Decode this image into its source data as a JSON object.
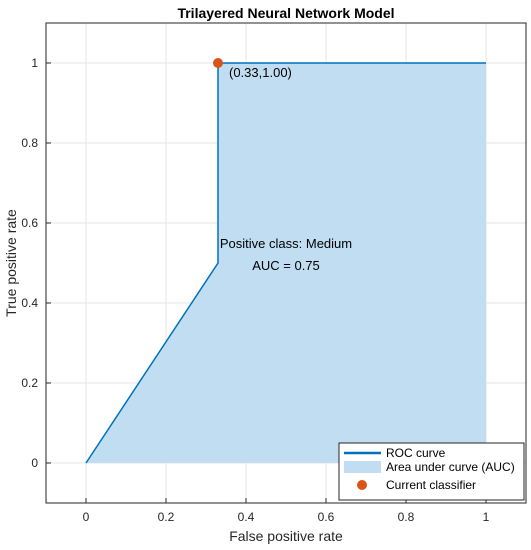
{
  "chart_data": {
    "type": "area",
    "title": "Trilayered Neural Network Model",
    "xlabel": "False positive rate",
    "ylabel": "True positive rate",
    "xlim": [
      -0.1,
      1.1
    ],
    "ylim": [
      -0.1,
      1.1
    ],
    "x_ticks": [
      0,
      0.2,
      0.4,
      0.6,
      0.8,
      1
    ],
    "x_tick_labels": [
      "0",
      "0.2",
      "0.4",
      "0.6",
      "0.8",
      "1"
    ],
    "y_ticks": [
      0,
      0.2,
      0.4,
      0.6,
      0.8,
      1
    ],
    "y_tick_labels": [
      "0",
      "0.2",
      "0.4",
      "0.6",
      "0.8",
      "1"
    ],
    "grid": true,
    "series": [
      {
        "name": "ROC curve",
        "x": [
          0,
          0.33,
          0.33,
          1
        ],
        "y": [
          0,
          0.5,
          1.0,
          1.0
        ],
        "color": "#0072BD"
      }
    ],
    "auc_fill_color": "#C0DDF2",
    "current_classifier": {
      "x": 0.33,
      "y": 1.0,
      "label": "(0.33,1.00)",
      "color": "#D95319"
    },
    "annotations": [
      "Positive class: Medium",
      "AUC = 0.75"
    ],
    "legend": {
      "position": "bottom-right",
      "entries": [
        "ROC curve",
        "Area under curve (AUC)",
        "Current classifier"
      ]
    }
  }
}
